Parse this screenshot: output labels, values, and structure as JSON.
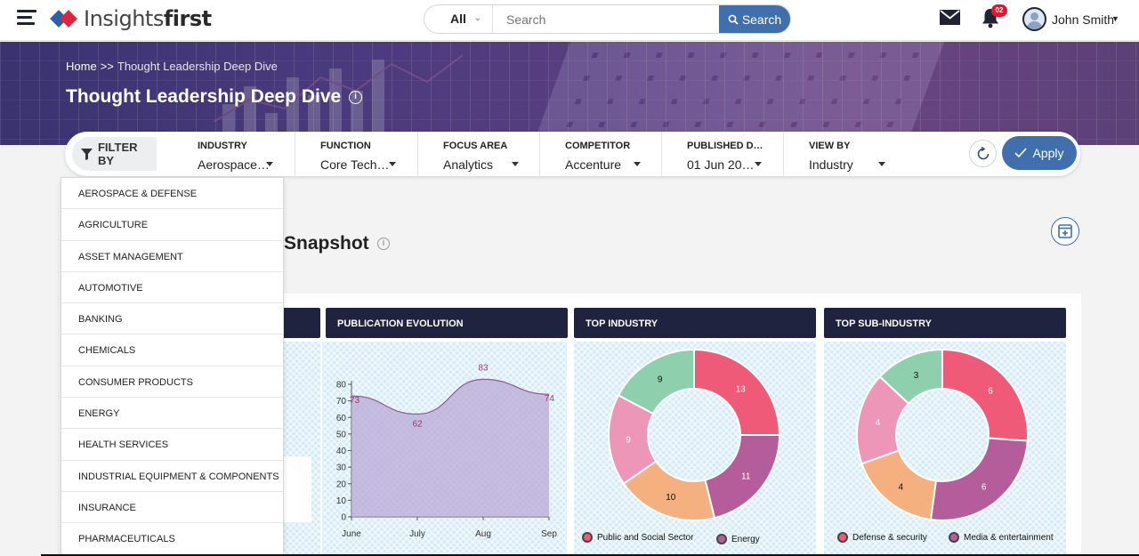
{
  "header": {
    "brand_light": "Insights",
    "brand_bold": "first",
    "search_scope": "All",
    "search_placeholder": "Search",
    "search_button": "Search",
    "notification_count": "02",
    "user_name": "John Smith"
  },
  "hero": {
    "breadcrumb_home": "Home",
    "breadcrumb_sep": ">>",
    "breadcrumb_current": "Thought Leadership Deep Dive",
    "title": "Thought Leadership Deep Dive"
  },
  "filters": {
    "filter_by_label": "FILTER BY",
    "columns": [
      {
        "label": "INDUSTRY",
        "value": "Aerospace…"
      },
      {
        "label": "FUNCTION",
        "value": "Core Tech…"
      },
      {
        "label": "FOCUS AREA",
        "value": "Analytics"
      },
      {
        "label": "COMPETITOR",
        "value": "Accenture"
      },
      {
        "label": "PUBLISHED D…",
        "value": "01 Jun 20…"
      },
      {
        "label": "VIEW BY",
        "value": "Industry"
      }
    ],
    "apply_label": "Apply"
  },
  "industry_dropdown": [
    "AEROSPACE & DEFENSE",
    "AGRICULTURE",
    "ASSET MANAGEMENT",
    "AUTOMOTIVE",
    "BANKING",
    "CHEMICALS",
    "CONSUMER PRODUCTS",
    "ENERGY",
    "HEALTH SERVICES",
    "INDUSTRIAL EQUIPMENT & COMPONENTS",
    "INSURANCE",
    "PHARMACEUTICALS"
  ],
  "snapshot": {
    "title": "Snapshot",
    "cards": [
      "PUBLICATION EVOLUTION",
      "TOP INDUSTRY",
      "TOP SUB-INDUSTRY"
    ]
  },
  "chart_data": [
    {
      "type": "area",
      "title": "PUBLICATION EVOLUTION",
      "x": [
        "June",
        "July",
        "Aug",
        "Sep"
      ],
      "values": [
        73,
        62,
        83,
        74
      ],
      "ylim": [
        0,
        80
      ],
      "yticks": [
        0,
        10,
        20,
        30,
        40,
        50,
        60,
        70,
        80
      ],
      "color": "#b8a8d6"
    },
    {
      "type": "pie",
      "title": "TOP INDUSTRY",
      "values": [
        13,
        11,
        10,
        9,
        9
      ],
      "colors": [
        "#ef5a78",
        "#b45d9a",
        "#f5b07f",
        "#ee96b8",
        "#8ecfae"
      ],
      "legend": [
        {
          "label": "Public and Social Sector",
          "color": "#ef5a78"
        },
        {
          "label": "Energy",
          "color": "#b45d9a"
        }
      ]
    },
    {
      "type": "pie",
      "title": "TOP SUB-INDUSTRY",
      "values": [
        6,
        6,
        4,
        4,
        3
      ],
      "colors": [
        "#ef5a78",
        "#b45d9a",
        "#f5b07f",
        "#ee96b8",
        "#8ecfae"
      ],
      "legend": [
        {
          "label": "Defense & security",
          "color": "#ef5a78"
        },
        {
          "label": "Media & entertainment",
          "color": "#b45d9a"
        }
      ]
    }
  ]
}
